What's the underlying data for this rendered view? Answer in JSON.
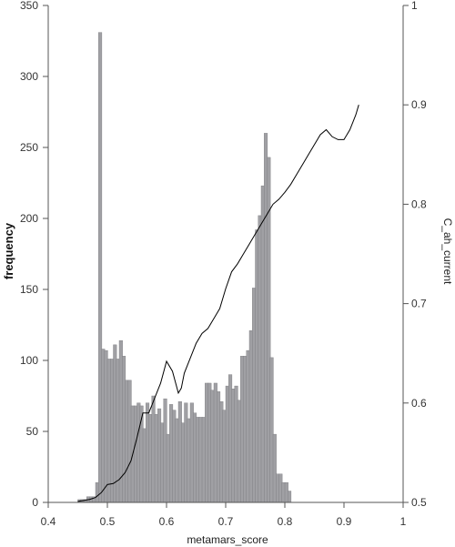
{
  "chart_data": {
    "type": "bar",
    "title": "",
    "xlabel": "metamars_score",
    "ylabel": "frequency",
    "y2label": "C_ah_current",
    "xlim": [
      0.4,
      1.0
    ],
    "ylim": [
      0,
      350
    ],
    "y2lim": [
      0.5,
      1.0
    ],
    "x_ticks": [
      "0.4",
      "0.5",
      "0.6",
      "0.7",
      "0.8",
      "0.9",
      "1"
    ],
    "y_ticks": [
      "0",
      "50",
      "100",
      "150",
      "200",
      "250",
      "300",
      "350"
    ],
    "y2_ticks": [
      "0.5",
      "0.6",
      "0.7",
      "0.8",
      "0.9",
      "1"
    ],
    "bar_color": "#a0a0a4",
    "line_color": "#000000",
    "bin_start": 0.45,
    "bin_width": 0.005,
    "frequency": [
      2,
      2,
      2,
      4,
      4,
      4,
      14,
      331,
      108,
      107,
      101,
      101,
      111,
      101,
      114,
      103,
      86,
      86,
      68,
      68,
      70,
      68,
      52,
      70,
      62,
      75,
      62,
      66,
      56,
      73,
      48,
      69,
      65,
      59,
      71,
      56,
      70,
      59,
      70,
      63,
      60,
      60,
      60,
      84,
      84,
      79,
      84,
      78,
      71,
      65,
      82,
      90,
      80,
      82,
      72,
      103,
      103,
      107,
      121,
      151,
      192,
      202,
      223,
      260,
      243,
      102,
      48,
      20,
      20,
      14,
      14,
      8
    ],
    "series": [
      {
        "name": "C_ah_current",
        "x": [
          0.45,
          0.46,
          0.47,
          0.48,
          0.49,
          0.5,
          0.51,
          0.52,
          0.53,
          0.54,
          0.55,
          0.56,
          0.57,
          0.58,
          0.59,
          0.6,
          0.61,
          0.62,
          0.625,
          0.63,
          0.64,
          0.65,
          0.66,
          0.67,
          0.68,
          0.69,
          0.7,
          0.71,
          0.72,
          0.73,
          0.74,
          0.75,
          0.76,
          0.77,
          0.78,
          0.79,
          0.8,
          0.81,
          0.82,
          0.83,
          0.84,
          0.85,
          0.86,
          0.87,
          0.88,
          0.89,
          0.9,
          0.91,
          0.92,
          0.925
        ],
        "values": [
          0.501,
          0.502,
          0.503,
          0.505,
          0.51,
          0.518,
          0.519,
          0.523,
          0.53,
          0.542,
          0.565,
          0.59,
          0.59,
          0.605,
          0.62,
          0.642,
          0.632,
          0.61,
          0.615,
          0.63,
          0.645,
          0.66,
          0.67,
          0.675,
          0.685,
          0.695,
          0.715,
          0.732,
          0.74,
          0.75,
          0.76,
          0.77,
          0.78,
          0.79,
          0.8,
          0.805,
          0.812,
          0.82,
          0.83,
          0.84,
          0.85,
          0.86,
          0.87,
          0.875,
          0.868,
          0.865,
          0.865,
          0.875,
          0.89,
          0.9
        ]
      }
    ],
    "grid": false,
    "legend": "none"
  }
}
